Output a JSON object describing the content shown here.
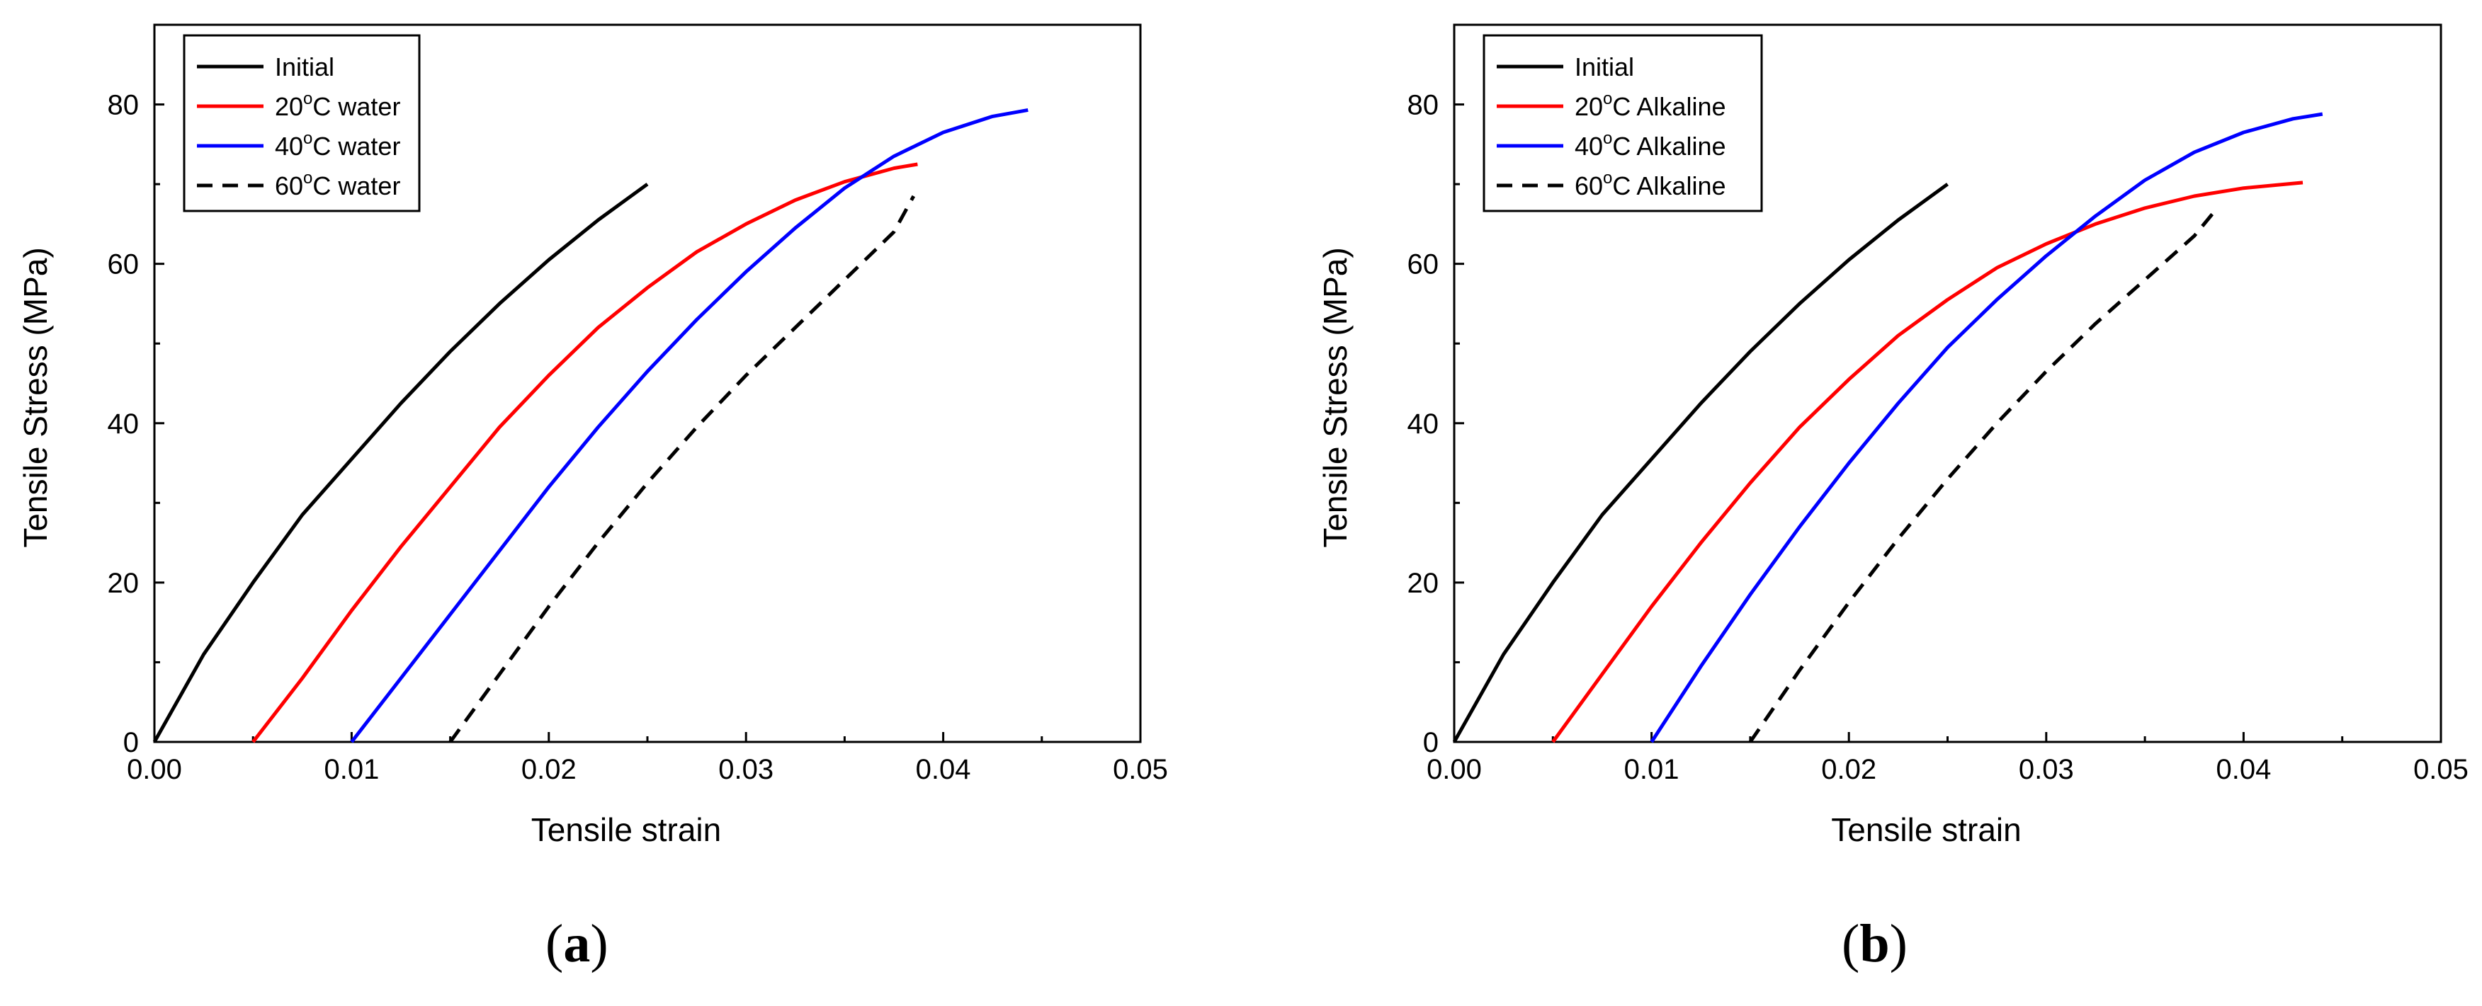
{
  "chart_data": [
    {
      "id": "a",
      "type": "line",
      "panel_label": "a",
      "xlabel": "Tensile strain",
      "ylabel": "Tensile Stress (MPa)",
      "xlim": [
        0.0,
        0.05
      ],
      "ylim": [
        0,
        90
      ],
      "xticks": [
        0.0,
        0.01,
        0.02,
        0.03,
        0.04,
        0.05
      ],
      "xtick_labels": [
        "0.00",
        "0.01",
        "0.02",
        "0.03",
        "0.04",
        "0.05"
      ],
      "yticks": [
        0,
        20,
        40,
        60,
        80
      ],
      "ytick_labels": [
        "0",
        "20",
        "40",
        "60",
        "80"
      ],
      "legend_position": "top-left",
      "series": [
        {
          "name": "Initial",
          "label_pre": "Initial",
          "label_sup": "",
          "label_post": "",
          "color": "#000000",
          "dash": "solid",
          "x": [
            0.0,
            0.0025,
            0.005,
            0.0075,
            0.01,
            0.0125,
            0.015,
            0.0175,
            0.02,
            0.0225,
            0.025
          ],
          "y": [
            0,
            11,
            20,
            28.5,
            35.5,
            42.5,
            49,
            55,
            60.5,
            65.5,
            70
          ]
        },
        {
          "name": "20°C water",
          "label_pre": "20",
          "label_sup": "o",
          "label_post": "C water",
          "color": "#ff0000",
          "dash": "solid",
          "x": [
            0.005,
            0.0075,
            0.01,
            0.0125,
            0.015,
            0.0175,
            0.02,
            0.0225,
            0.025,
            0.0275,
            0.03,
            0.0325,
            0.035,
            0.0375,
            0.0387
          ],
          "y": [
            0,
            8,
            16.5,
            24.5,
            32,
            39.5,
            46,
            52,
            57,
            61.5,
            65,
            68,
            70.3,
            72,
            72.5
          ]
        },
        {
          "name": "40°C water",
          "label_pre": "40",
          "label_sup": "o",
          "label_post": "C water",
          "color": "#0000ff",
          "dash": "solid",
          "x": [
            0.01,
            0.0125,
            0.015,
            0.0175,
            0.02,
            0.0225,
            0.025,
            0.0275,
            0.03,
            0.0325,
            0.035,
            0.0375,
            0.04,
            0.0425,
            0.0443
          ],
          "y": [
            0,
            8,
            16,
            24,
            32,
            39.5,
            46.5,
            53,
            59,
            64.5,
            69.5,
            73.5,
            76.5,
            78.5,
            79.3
          ]
        },
        {
          "name": "60°C water",
          "label_pre": "60",
          "label_sup": "o",
          "label_post": "C water",
          "color": "#000000",
          "dash": "dashed",
          "x": [
            0.015,
            0.0175,
            0.02,
            0.0225,
            0.025,
            0.0275,
            0.03,
            0.0325,
            0.035,
            0.0375,
            0.0385
          ],
          "y": [
            0,
            8.5,
            17,
            25,
            32.5,
            39.5,
            46,
            52,
            58,
            64,
            68.5
          ]
        }
      ]
    },
    {
      "id": "b",
      "type": "line",
      "panel_label": "b",
      "xlabel": "Tensile strain",
      "ylabel": "Tensile Stress (MPa)",
      "xlim": [
        0.0,
        0.05
      ],
      "ylim": [
        0,
        90
      ],
      "xticks": [
        0.0,
        0.01,
        0.02,
        0.03,
        0.04,
        0.05
      ],
      "xtick_labels": [
        "0.00",
        "0.01",
        "0.02",
        "0.03",
        "0.04",
        "0.05"
      ],
      "yticks": [
        0,
        20,
        40,
        60,
        80
      ],
      "ytick_labels": [
        "0",
        "20",
        "40",
        "60",
        "80"
      ],
      "legend_position": "top-left",
      "series": [
        {
          "name": "Initial",
          "label_pre": "Initial",
          "label_sup": "",
          "label_post": "",
          "color": "#000000",
          "dash": "solid",
          "x": [
            0.0,
            0.0025,
            0.005,
            0.0075,
            0.01,
            0.0125,
            0.015,
            0.0175,
            0.02,
            0.0225,
            0.025
          ],
          "y": [
            0,
            11,
            20,
            28.5,
            35.5,
            42.5,
            49,
            55,
            60.5,
            65.5,
            70
          ]
        },
        {
          "name": "20°C Alkaline",
          "label_pre": "20",
          "label_sup": "o",
          "label_post": "C Alkaline",
          "color": "#ff0000",
          "dash": "solid",
          "x": [
            0.005,
            0.0075,
            0.01,
            0.0125,
            0.015,
            0.0175,
            0.02,
            0.0225,
            0.025,
            0.0275,
            0.03,
            0.0325,
            0.035,
            0.0375,
            0.04,
            0.043
          ],
          "y": [
            0,
            8.5,
            17,
            25,
            32.5,
            39.5,
            45.5,
            51,
            55.5,
            59.5,
            62.5,
            65,
            67,
            68.5,
            69.5,
            70.2
          ]
        },
        {
          "name": "40°C Alkaline",
          "label_pre": "40",
          "label_sup": "o",
          "label_post": "C Alkaline",
          "color": "#0000ff",
          "dash": "solid",
          "x": [
            0.01,
            0.0125,
            0.015,
            0.0175,
            0.02,
            0.0225,
            0.025,
            0.0275,
            0.03,
            0.0325,
            0.035,
            0.0375,
            0.04,
            0.0425,
            0.044
          ],
          "y": [
            0,
            9.5,
            18.5,
            27,
            35,
            42.5,
            49.5,
            55.5,
            61,
            66,
            70.5,
            74,
            76.5,
            78.2,
            78.8
          ]
        },
        {
          "name": "60°C Alkaline",
          "label_pre": "60",
          "label_sup": "o",
          "label_post": "C Alkaline",
          "color": "#000000",
          "dash": "dashed",
          "x": [
            0.015,
            0.0175,
            0.02,
            0.0225,
            0.025,
            0.0275,
            0.03,
            0.0325,
            0.035,
            0.0375,
            0.0385
          ],
          "y": [
            0,
            9,
            17.5,
            25.5,
            33,
            40,
            46.5,
            52.5,
            58,
            63.5,
            66.5
          ]
        }
      ]
    }
  ]
}
